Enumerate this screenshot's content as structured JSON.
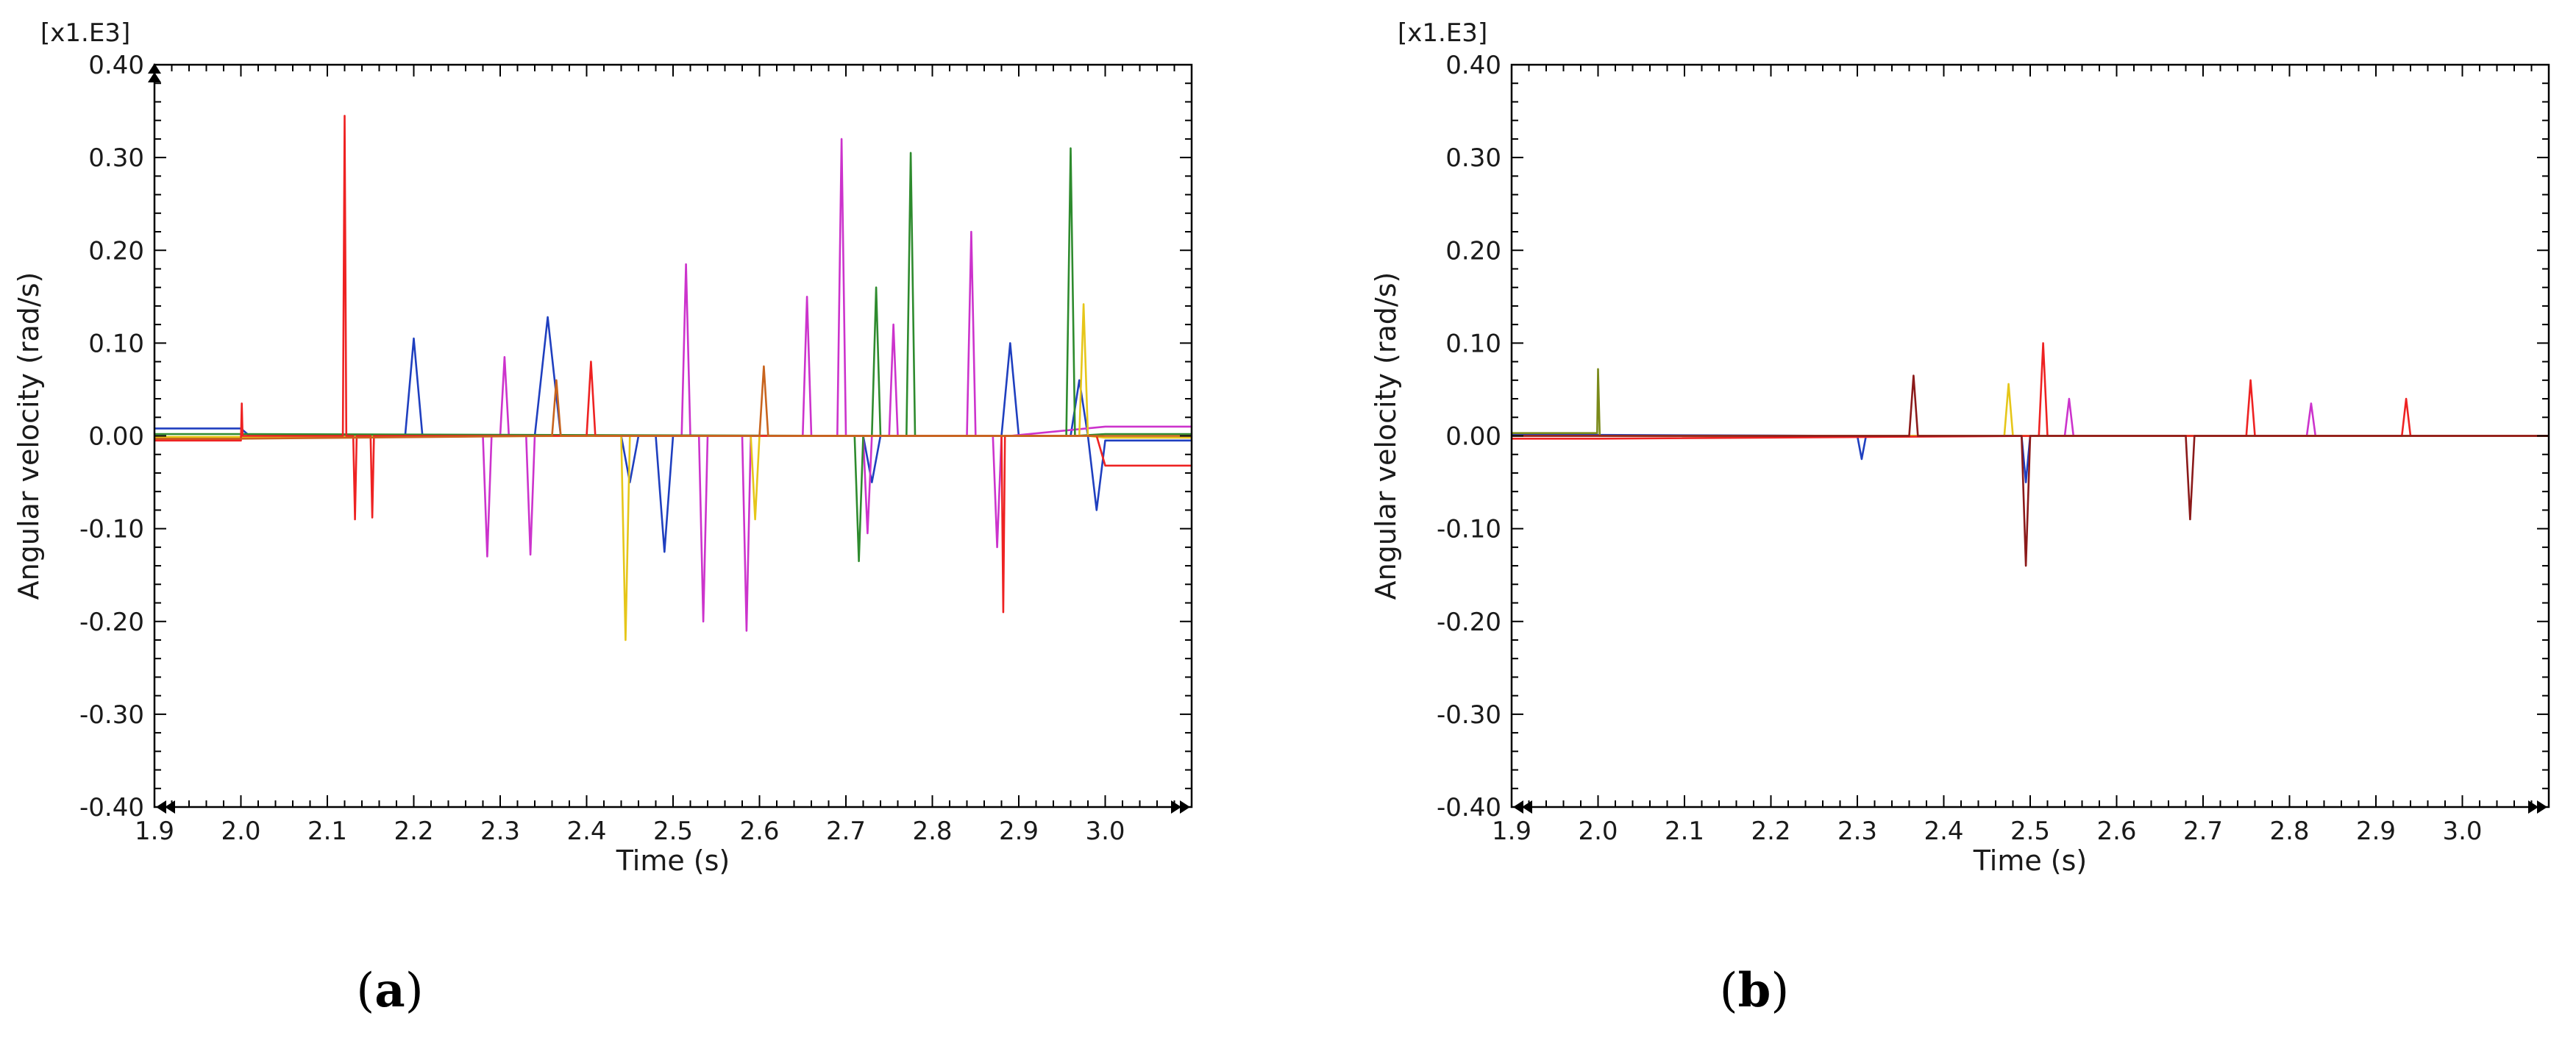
{
  "chart_data": [
    {
      "type": "line",
      "panel_label_parts": [
        "(",
        "a",
        ")"
      ],
      "multiplier_label": "[x1.E3]",
      "xlabel": "Time (s)",
      "ylabel": "Angular velocity (rad/s)",
      "xlim": [
        1.9,
        3.1
      ],
      "ylim": [
        -0.4,
        0.4
      ],
      "xticks": [
        1.9,
        2.0,
        2.1,
        2.2,
        2.3,
        2.4,
        2.5,
        2.6,
        2.7,
        2.8,
        2.9,
        3.0
      ],
      "xtick_labels": [
        "1.9",
        "2.0",
        "2.1",
        "2.2",
        "2.3",
        "2.4",
        "2.5",
        "2.6",
        "2.7",
        "2.8",
        "2.9",
        "3.0"
      ],
      "yticks": [
        -0.4,
        -0.3,
        -0.2,
        -0.1,
        0.0,
        0.1,
        0.2,
        0.3,
        0.4
      ],
      "ytick_labels": [
        "-0.40",
        "-0.30",
        "-0.20",
        "-0.10",
        "0.00",
        "0.10",
        "0.20",
        "0.30",
        "0.40"
      ],
      "grid": false,
      "series": [
        {
          "color": "#1f3fbf",
          "x": [
            1.9,
            2.0,
            2.01,
            2.19,
            2.2,
            2.21,
            2.34,
            2.355,
            2.37,
            2.44,
            2.45,
            2.46,
            2.48,
            2.49,
            2.5,
            2.72,
            2.73,
            2.74,
            2.88,
            2.89,
            2.9,
            2.96,
            2.97,
            2.98,
            2.99,
            3.0,
            3.1
          ],
          "y": [
            0.008,
            0.008,
            0.0,
            0.0,
            0.105,
            0.0,
            0.0,
            0.128,
            0.0,
            0.0,
            -0.05,
            0.0,
            0.0,
            -0.125,
            0.0,
            0.0,
            -0.05,
            0.0,
            0.0,
            0.1,
            0.0,
            0.0,
            0.06,
            0.0,
            -0.08,
            -0.005,
            -0.005
          ]
        },
        {
          "color": "#cc33cc",
          "x": [
            1.9,
            2.0,
            2.28,
            2.285,
            2.29,
            2.3,
            2.305,
            2.31,
            2.33,
            2.335,
            2.34,
            2.51,
            2.515,
            2.52,
            2.53,
            2.535,
            2.54,
            2.58,
            2.585,
            2.59,
            2.65,
            2.655,
            2.66,
            2.69,
            2.695,
            2.7,
            2.72,
            2.725,
            2.73,
            2.75,
            2.755,
            2.76,
            2.84,
            2.845,
            2.85,
            2.87,
            2.875,
            2.88,
            2.89,
            3.0,
            3.1
          ],
          "y": [
            -0.002,
            -0.002,
            0.0,
            -0.13,
            0.0,
            0.0,
            0.085,
            0.0,
            0.0,
            -0.128,
            0.0,
            0.0,
            0.185,
            0.0,
            0.0,
            -0.2,
            0.0,
            0.0,
            -0.21,
            0.0,
            0.0,
            0.15,
            0.0,
            0.0,
            0.32,
            0.0,
            0.0,
            -0.105,
            0.0,
            0.0,
            0.12,
            0.0,
            0.0,
            0.22,
            0.0,
            0.0,
            -0.12,
            0.0,
            0.0,
            0.01,
            0.01
          ]
        },
        {
          "color": "#2e8b2e",
          "x": [
            1.9,
            2.0,
            2.71,
            2.715,
            2.72,
            2.73,
            2.735,
            2.74,
            2.77,
            2.775,
            2.78,
            2.955,
            2.96,
            2.965,
            3.0,
            3.1
          ],
          "y": [
            0.002,
            0.002,
            0.0,
            -0.135,
            0.0,
            0.0,
            0.16,
            0.0,
            0.0,
            0.305,
            0.0,
            0.0,
            0.31,
            0.0,
            0.002,
            0.002
          ]
        },
        {
          "color": "#e6c619",
          "x": [
            1.9,
            2.0,
            2.44,
            2.445,
            2.45,
            2.59,
            2.595,
            2.6,
            2.97,
            2.975,
            2.98,
            3.0,
            3.1
          ],
          "y": [
            -0.001,
            -0.001,
            0.0,
            -0.22,
            0.0,
            0.0,
            -0.09,
            0.0,
            0.0,
            0.142,
            0.0,
            -0.002,
            -0.002
          ]
        },
        {
          "color": "#ee2222",
          "x": [
            1.9,
            2.0,
            2.001,
            2.002,
            2.118,
            2.12,
            2.122,
            2.13,
            2.132,
            2.134,
            2.15,
            2.152,
            2.154,
            2.4,
            2.405,
            2.41,
            2.88,
            2.882,
            2.884,
            2.99,
            3.0,
            3.1
          ],
          "y": [
            -0.005,
            -0.005,
            0.035,
            0.0,
            0.0,
            0.345,
            0.0,
            0.0,
            -0.09,
            0.0,
            0.0,
            -0.088,
            0.0,
            0.0,
            0.08,
            0.0,
            0.0,
            -0.19,
            0.0,
            0.0,
            -0.032,
            -0.032
          ]
        },
        {
          "color": "#c8641e",
          "x": [
            1.9,
            2.0,
            2.36,
            2.365,
            2.37,
            2.6,
            2.605,
            2.61,
            3.0,
            3.1
          ],
          "y": [
            -0.003,
            -0.003,
            0.0,
            0.06,
            0.0,
            0.0,
            0.075,
            0.0,
            0.0,
            0.0
          ]
        }
      ]
    },
    {
      "type": "line",
      "panel_label_parts": [
        "(",
        "b",
        ")"
      ],
      "multiplier_label": "[x1.E3]",
      "xlabel": "Time (s)",
      "ylabel": "Angular velocity (rad/s)",
      "xlim": [
        1.9,
        3.1
      ],
      "ylim": [
        -0.4,
        0.4
      ],
      "xticks": [
        1.9,
        2.0,
        2.1,
        2.2,
        2.3,
        2.4,
        2.5,
        2.6,
        2.7,
        2.8,
        2.9,
        3.0
      ],
      "xtick_labels": [
        "1.9",
        "2.0",
        "2.1",
        "2.2",
        "2.3",
        "2.4",
        "2.5",
        "2.6",
        "2.7",
        "2.8",
        "2.9",
        "3.0"
      ],
      "yticks": [
        -0.4,
        -0.3,
        -0.2,
        -0.1,
        0.0,
        0.1,
        0.2,
        0.3,
        0.4
      ],
      "ytick_labels": [
        "-0.40",
        "-0.30",
        "-0.20",
        "-0.10",
        "0.00",
        "0.10",
        "0.20",
        "0.30",
        "0.40"
      ],
      "grid": false,
      "series": [
        {
          "color": "#1f3fbf",
          "x": [
            1.9,
            2.0,
            2.3,
            2.305,
            2.31,
            2.49,
            2.495,
            2.5,
            3.1
          ],
          "y": [
            0.001,
            0.001,
            0.0,
            -0.025,
            0.0,
            0.0,
            -0.05,
            0.0,
            0.0
          ]
        },
        {
          "color": "#cc33cc",
          "x": [
            1.9,
            2.0,
            2.54,
            2.545,
            2.55,
            2.82,
            2.825,
            2.83,
            3.1
          ],
          "y": [
            0.0,
            0.0,
            0.0,
            0.04,
            0.0,
            0.0,
            0.035,
            0.0,
            0.0
          ]
        },
        {
          "color": "#7a8a1a",
          "x": [
            1.9,
            1.999,
            2.0,
            2.002,
            2.004,
            2.5,
            3.1
          ],
          "y": [
            0.003,
            0.003,
            0.072,
            0.0,
            0.0,
            0.0,
            0.0
          ]
        },
        {
          "color": "#e6c619",
          "x": [
            1.9,
            2.0,
            2.47,
            2.475,
            2.48,
            3.1
          ],
          "y": [
            0.0,
            0.0,
            0.0,
            0.056,
            0.0,
            0.0
          ]
        },
        {
          "color": "#ee2222",
          "x": [
            1.9,
            2.0,
            2.51,
            2.515,
            2.52,
            2.75,
            2.755,
            2.76,
            2.93,
            2.935,
            2.94,
            3.1
          ],
          "y": [
            -0.003,
            -0.003,
            0.0,
            0.1,
            0.0,
            0.0,
            0.06,
            0.0,
            0.0,
            0.04,
            0.0,
            0.0
          ]
        },
        {
          "color": "#8b1a1a",
          "x": [
            1.9,
            2.0,
            2.36,
            2.365,
            2.37,
            2.49,
            2.495,
            2.5,
            2.68,
            2.685,
            2.69,
            3.1
          ],
          "y": [
            0.0,
            0.0,
            0.0,
            0.065,
            0.0,
            0.0,
            -0.14,
            0.0,
            0.0,
            -0.09,
            0.0,
            0.0
          ]
        }
      ]
    }
  ]
}
